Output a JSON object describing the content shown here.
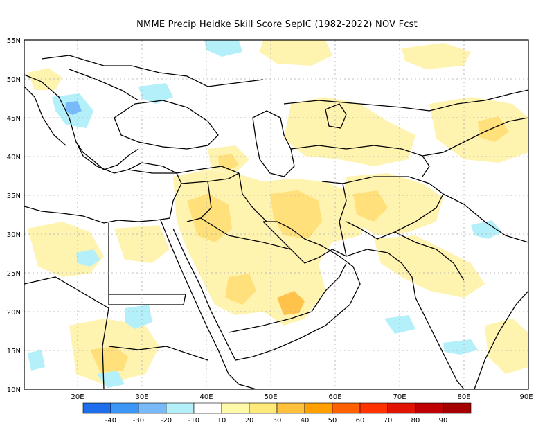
{
  "map": {
    "title": "NMME Precip Heidke Skill Score SepIC (1982-2022) NOV Fcst",
    "lon_labels": [
      "20E",
      "30E",
      "40E",
      "50E",
      "60E",
      "70E",
      "80E",
      "90E"
    ],
    "lat_labels": [
      "55N",
      "50N",
      "45N",
      "40N",
      "35N",
      "30N",
      "25N",
      "20N",
      "15N",
      "10N"
    ]
  },
  "legend": {
    "labels": [
      "-40",
      "-30",
      "-20",
      "-10",
      "10",
      "20",
      "30",
      "40",
      "50",
      "60",
      "70",
      "80",
      "90"
    ],
    "colors": [
      "#1e6eeb",
      "#3c96f5",
      "#78b9fa",
      "#b4f0fa",
      "#ffffff",
      "#fffaaa",
      "#ffe978",
      "#ffc03c",
      "#ffa000",
      "#ff6000",
      "#ff3200",
      "#e11400",
      "#c00000",
      "#a50000"
    ]
  },
  "colors": {
    "land_outline": "#000000",
    "grid": "#aaaaaa",
    "positive_light": "#fff3b0",
    "positive_mid": "#ffe07a",
    "positive_strong": "#ffc24a",
    "negative_light": "#b4f0fa",
    "negative_mid": "#78b9fa"
  }
}
